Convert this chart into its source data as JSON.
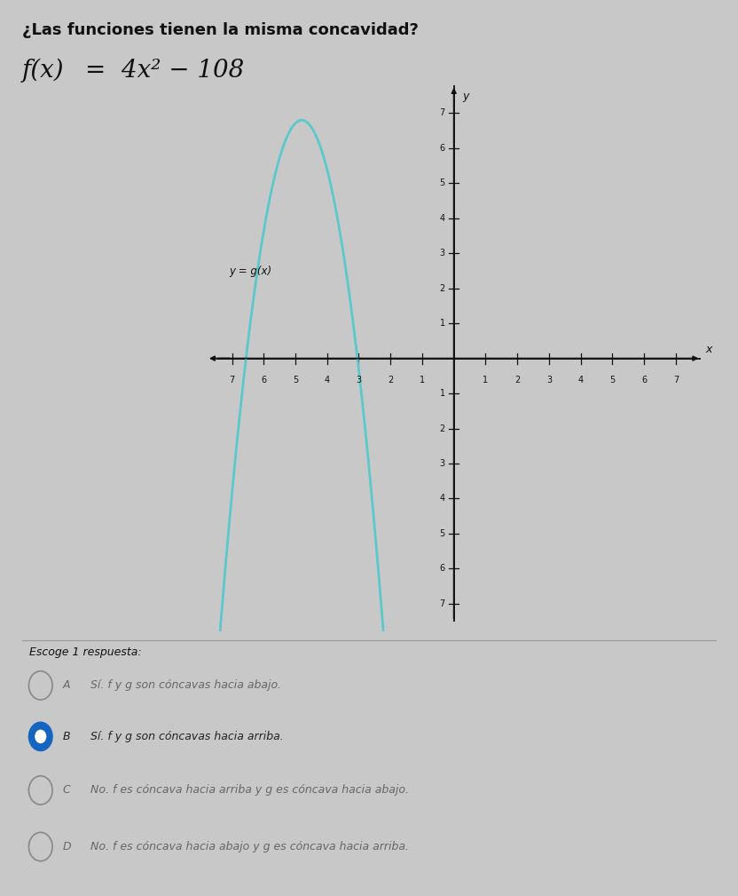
{
  "title": "¿Las funciones tienen la misma concavidad?",
  "formula_text": "f(x) = 4x² − 108",
  "curve_label": "y = g(x)",
  "curve_color": "#5bc8cc",
  "axis_color": "#111111",
  "bg_color": "#c8c8c8",
  "xlim": [
    -7.8,
    7.8
  ],
  "ylim": [
    -7.8,
    7.8
  ],
  "xticks": [
    -7,
    -6,
    -5,
    -4,
    -3,
    -2,
    -1,
    1,
    2,
    3,
    4,
    5,
    6,
    7
  ],
  "yticks": [
    -7,
    -6,
    -5,
    -4,
    -3,
    -2,
    -1,
    1,
    2,
    3,
    4,
    5,
    6,
    7
  ],
  "answer_label": "Escoge 1 respuesta:",
  "options": [
    {
      "letter": "A",
      "text": "Sí. f y g son cóncavas hacia abajo.",
      "selected": false
    },
    {
      "letter": "B",
      "text": "Sí. f y g son cóncavas hacia arriba.",
      "selected": true
    },
    {
      "letter": "C",
      "text": "No. f es cóncava hacia arriba y g es cóncava hacia abajo.",
      "selected": false
    },
    {
      "letter": "D",
      "text": "No. f es cóncava hacia abajo y g es cóncava hacia arriba.",
      "selected": false
    }
  ],
  "g_vertex_x": -4.8,
  "g_vertex_y": 6.8,
  "g_a": -2.2,
  "title_fontsize": 13,
  "formula_fontsize": 20,
  "axis_label_x": "x",
  "axis_label_y": "y",
  "selected_color": "#1565C0",
  "unselected_color": "#888888",
  "text_color_normal": "#666666",
  "text_color_selected": "#222222"
}
